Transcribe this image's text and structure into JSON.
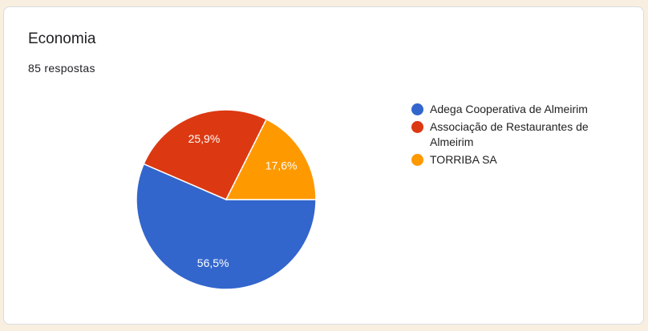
{
  "header": {
    "title": "Economia",
    "responses": "85 respostas"
  },
  "chart_data": {
    "type": "pie",
    "categories": [
      "Adega Cooperativa de Almeirim",
      "Associação de Restaurantes de Almeirim",
      "TORRIBA SA"
    ],
    "values": [
      56.5,
      25.9,
      17.6
    ],
    "labels": [
      "56,5%",
      "25,9%",
      "17,6%"
    ],
    "colors": [
      "#3366cc",
      "#dc3912",
      "#ff9900"
    ],
    "legend_position": "right"
  }
}
